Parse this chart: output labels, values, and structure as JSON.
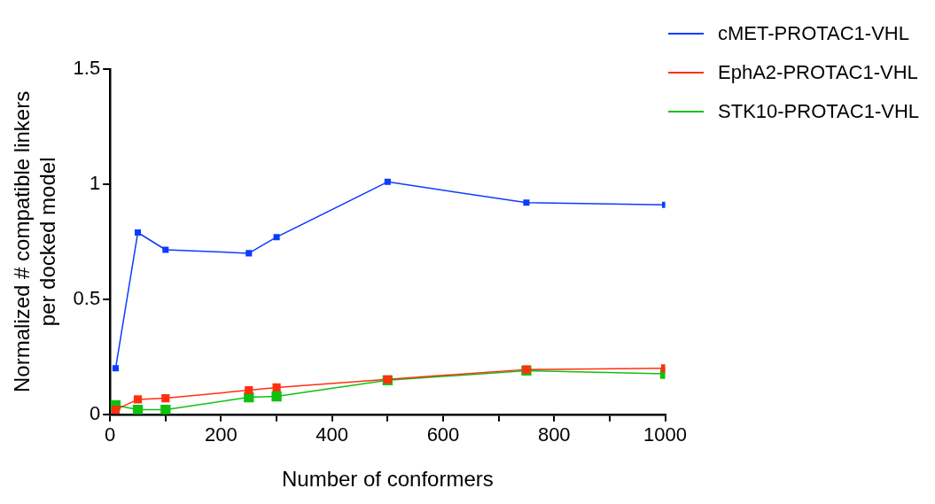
{
  "chart_data": {
    "type": "line",
    "xlabel": "Number of conformers",
    "ylabel": "Normalized # compatible linkers\nper docked model",
    "x": [
      10,
      50,
      100,
      250,
      300,
      500,
      750,
      1000
    ],
    "series": [
      {
        "name": "cMET-PROTAC1-VHL",
        "color": "#0a3cff",
        "values": [
          0.2,
          0.79,
          0.715,
          0.7,
          0.77,
          1.01,
          0.92,
          0.91
        ]
      },
      {
        "name": "EphA2-PROTAC1-VHL",
        "color": "#ff3010",
        "values": [
          0.02,
          0.065,
          0.07,
          0.105,
          0.117,
          0.152,
          0.195,
          0.2
        ]
      },
      {
        "name": "STK10-PROTAC1-VHL",
        "color": "#10c010",
        "values": [
          0.04,
          0.02,
          0.02,
          0.074,
          0.078,
          0.148,
          0.19,
          0.176
        ]
      }
    ],
    "xlim": [
      0,
      1000
    ],
    "xticks": [
      0,
      {
        "value": 100,
        "label": null
      },
      200,
      {
        "value": 300,
        "label": null
      },
      400,
      {
        "value": 500,
        "label": null
      },
      600,
      {
        "value": 700,
        "label": null
      },
      800,
      {
        "value": 900,
        "label": null
      },
      1000
    ],
    "ylim": [
      0,
      1.5
    ],
    "yticks": [
      0,
      0.5,
      1.0,
      1.5
    ],
    "grid": false,
    "legend": "top right",
    "marker": "square",
    "line_style": "solid"
  }
}
